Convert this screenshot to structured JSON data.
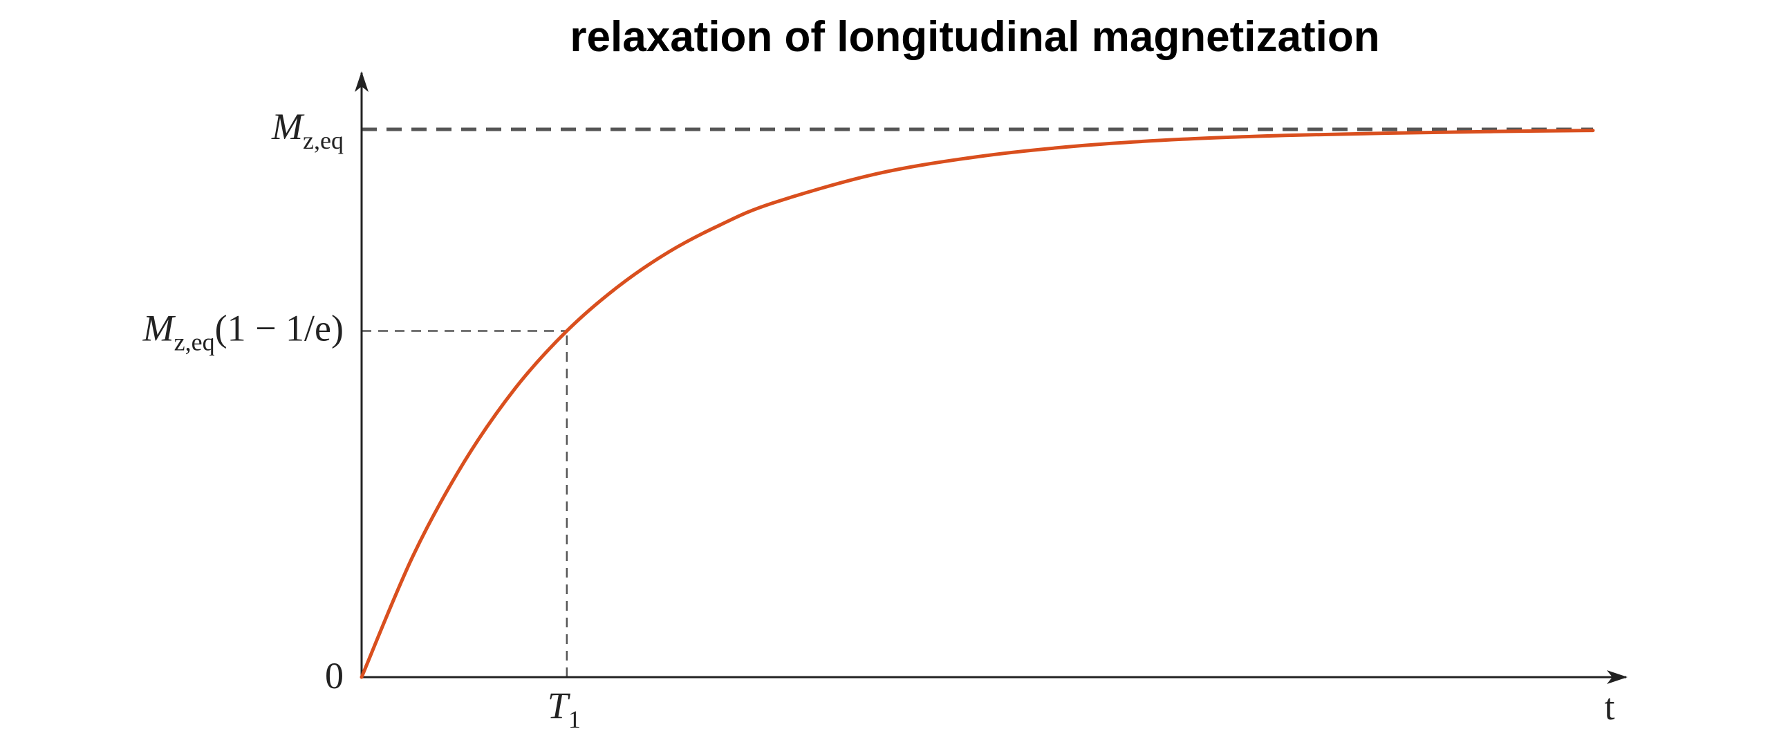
{
  "chart_data": {
    "type": "line",
    "title": "relaxation of longitudinal magnetization",
    "xlabel": "t",
    "ylabel": "",
    "xlim": [
      0,
      6.0
    ],
    "ylim": [
      0,
      1.0
    ],
    "series": [
      {
        "function": "1 - exp(-t/T1)",
        "color": "#D94F1E",
        "x": [
          0,
          0.25,
          0.5,
          0.75,
          1.0,
          1.25,
          1.5,
          1.75,
          2.0,
          2.5,
          3.0,
          3.5,
          4.0,
          4.5,
          5.0,
          5.5,
          6.0
        ],
        "values": [
          0,
          0.221,
          0.393,
          0.528,
          0.632,
          0.713,
          0.777,
          0.826,
          0.865,
          0.918,
          0.95,
          0.97,
          0.982,
          0.989,
          0.993,
          0.996,
          0.998
        ]
      }
    ],
    "y_ticks": {
      "zero": "0",
      "eq": {
        "main": "M",
        "sub": "z,eq",
        "suffix": ""
      },
      "mid": {
        "main": "M",
        "sub": "z,eq",
        "suffix": "(1 − 1/e)"
      }
    },
    "x_ticks": {
      "t1": {
        "main": "T",
        "sub": "1"
      }
    },
    "reference_lines": [
      {
        "kind": "horizontal",
        "y": 1.0,
        "style": "dashed"
      },
      {
        "kind": "horizontal",
        "y": 0.632,
        "x_to": 1.0,
        "style": "dashed"
      },
      {
        "kind": "vertical",
        "x": 1.0,
        "y_to": 0.632,
        "style": "dashed"
      }
    ],
    "grid": false,
    "colors": {
      "curve": "#D94F1E",
      "axis": "#222222",
      "dashed": "#555555"
    }
  }
}
